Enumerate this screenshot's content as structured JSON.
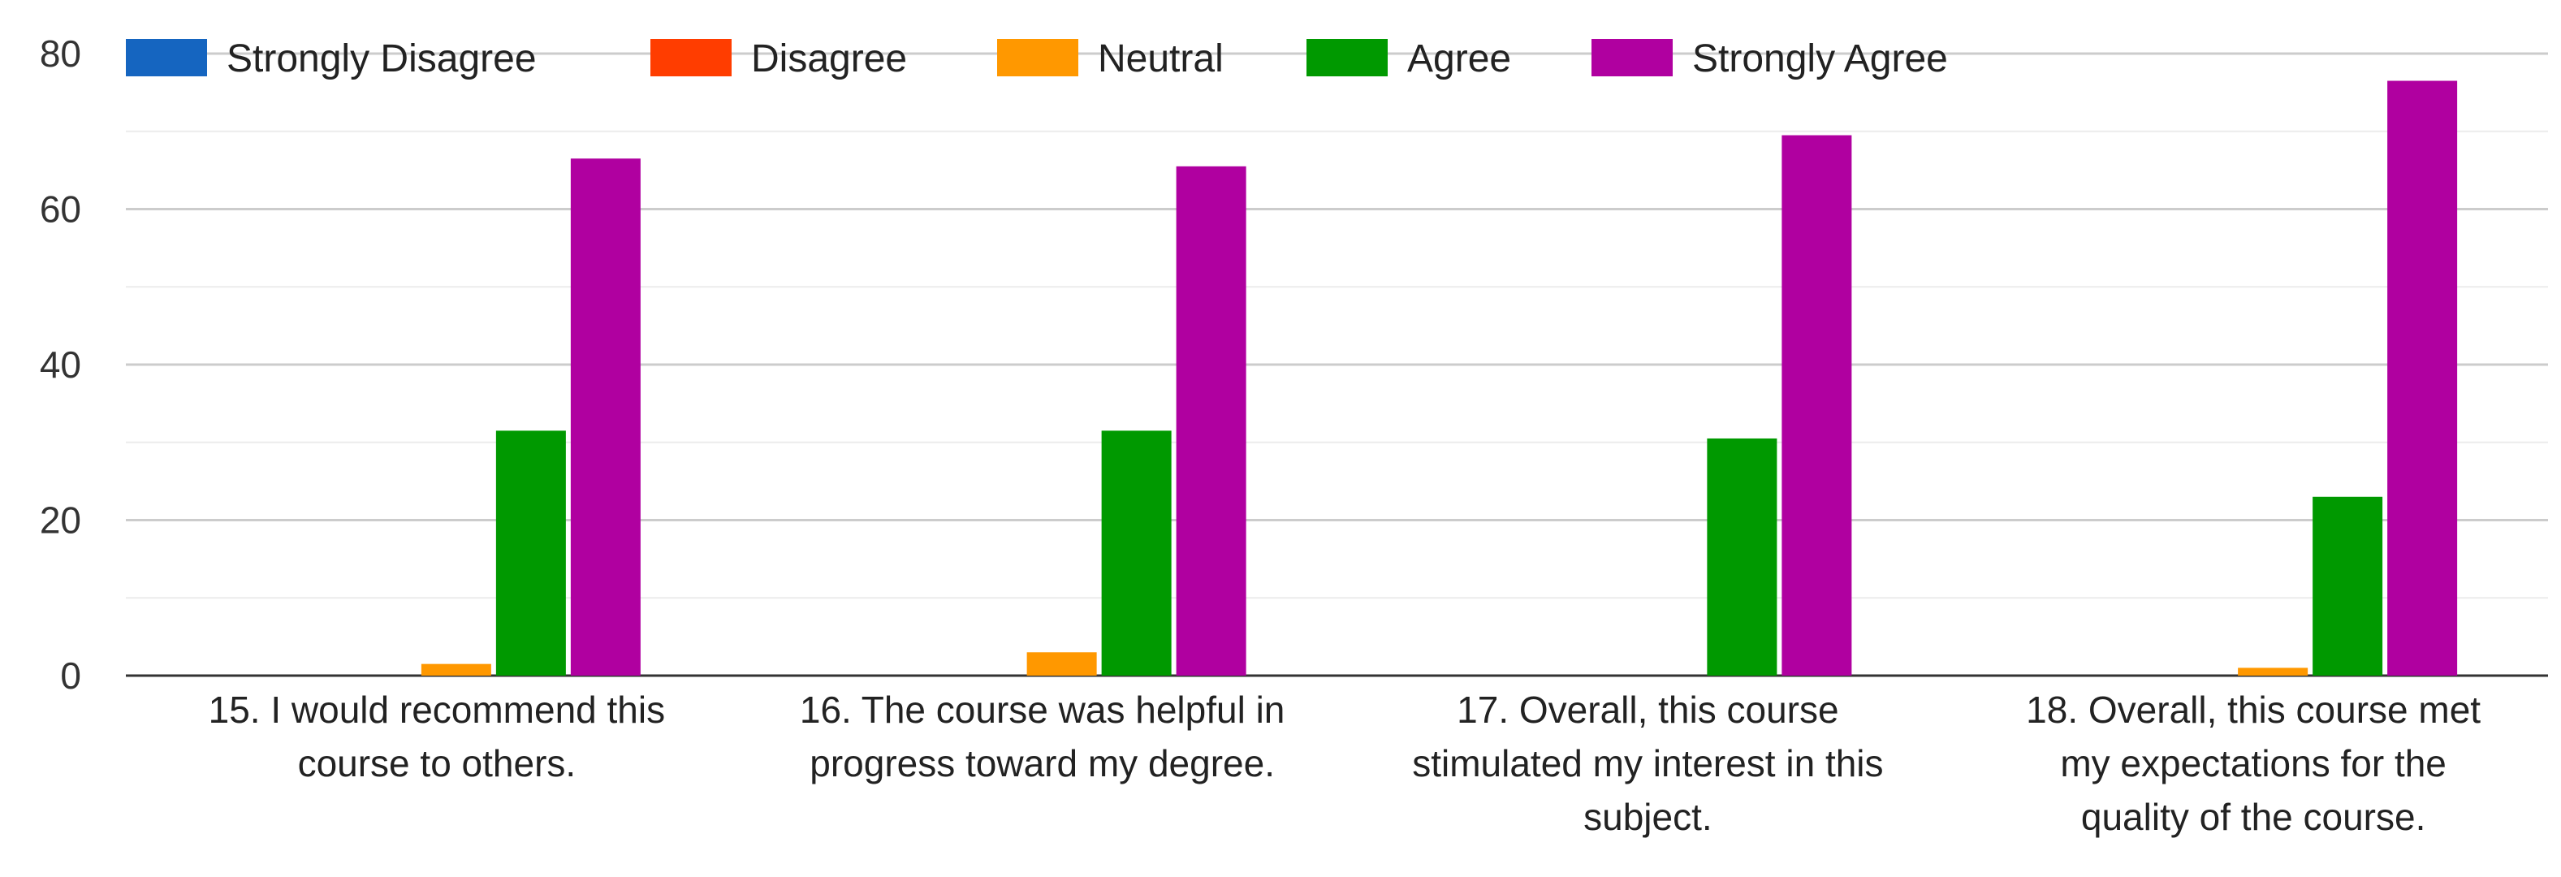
{
  "chart_data": {
    "type": "bar",
    "categories": [
      [
        "15. I would recommend this",
        "course to others."
      ],
      [
        "16. The course was helpful in",
        "progress toward my degree."
      ],
      [
        "17. Overall, this course",
        "stimulated my interest in this",
        "subject."
      ],
      [
        "18. Overall, this course met",
        "my expectations for the",
        "quality of the course."
      ]
    ],
    "series": [
      {
        "name": "Strongly Disagree",
        "color": "#1565c0",
        "values": [
          0,
          0,
          0,
          0
        ]
      },
      {
        "name": "Disagree",
        "color": "#ff3d00",
        "values": [
          0,
          0,
          0,
          0
        ]
      },
      {
        "name": "Neutral",
        "color": "#ff9800",
        "values": [
          1.5,
          3,
          0,
          1
        ]
      },
      {
        "name": "Agree",
        "color": "#009900",
        "values": [
          31.5,
          31.5,
          30.5,
          23
        ]
      },
      {
        "name": "Strongly Agree",
        "color": "#b000a0",
        "values": [
          66.5,
          65.5,
          69.5,
          76.5
        ]
      }
    ],
    "ylim": [
      0,
      80
    ],
    "yticks": [
      0,
      20,
      40,
      60,
      80
    ],
    "minor_grid": [
      10,
      30,
      50,
      70
    ],
    "grid": true,
    "legend_position": "top",
    "title": "",
    "xlabel": "",
    "ylabel": ""
  }
}
